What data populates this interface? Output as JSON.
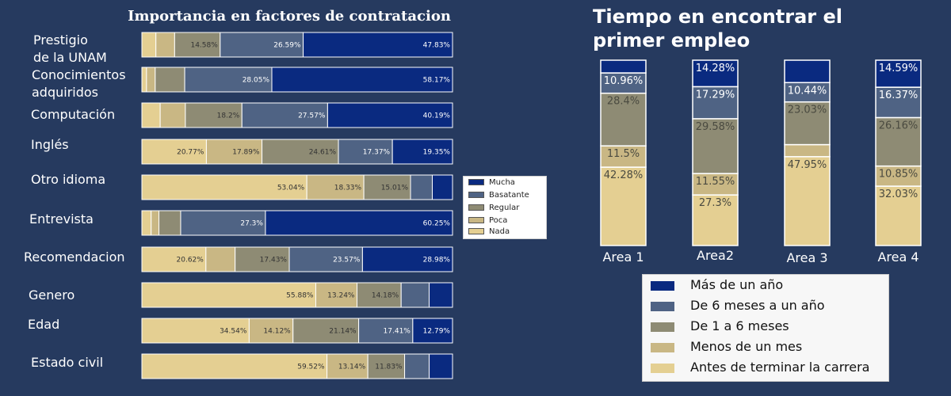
{
  "chart_data": [
    {
      "type": "bar",
      "orientation": "horizontal",
      "stacked": true,
      "title": "Importancia en factores de contratacion",
      "categories": [
        "Prestigio\nde la UNAM",
        "Conocimientos\nadquiridos",
        "Computación",
        "Inglés",
        "Otro idioma",
        "Entrevista",
        "Recomendacion",
        "Genero",
        "Edad",
        "Estado civil"
      ],
      "series": [
        {
          "name": "Nada",
          "values": [
            4.5,
            1.5,
            5.9,
            20.77,
            53.04,
            3.0,
            20.62,
            55.88,
            34.54,
            59.52
          ],
          "labels": [
            "",
            "",
            "",
            "20.77%",
            "53.04%",
            "",
            "20.62%",
            "55.88%",
            "34.54%",
            "59.52%"
          ]
        },
        {
          "name": "Poca",
          "values": [
            6.0,
            2.8,
            8.1,
            17.89,
            18.33,
            2.5,
            9.4,
            13.24,
            14.12,
            13.14
          ],
          "labels": [
            "",
            "",
            "",
            "17.89%",
            "18.33%",
            "",
            "",
            "13.24%",
            "14.12%",
            "13.14%"
          ]
        },
        {
          "name": "Regular",
          "values": [
            14.58,
            9.5,
            18.2,
            24.61,
            15.01,
            7.0,
            17.43,
            14.18,
            21.14,
            11.83
          ],
          "labels": [
            "14.58%",
            "",
            "18.2%",
            "24.61%",
            "15.01%",
            "",
            "17.43%",
            "14.18%",
            "21.14%",
            "11.83%"
          ]
        },
        {
          "name": "Basatante",
          "values": [
            26.59,
            28.05,
            27.57,
            17.37,
            7.0,
            27.3,
            23.57,
            9.0,
            17.41,
            7.9
          ],
          "labels": [
            "26.59%",
            "28.05%",
            "27.57%",
            "17.37%",
            "",
            "27.3%",
            "23.57%",
            "",
            "17.41%",
            ""
          ]
        },
        {
          "name": "Mucha",
          "values": [
            47.83,
            58.17,
            40.19,
            19.35,
            6.5,
            60.25,
            28.98,
            7.5,
            12.79,
            7.5
          ],
          "labels": [
            "47.83%",
            "58.17%",
            "40.19%",
            "19.35%",
            "",
            "60.25%",
            "28.98%",
            "",
            "12.79%",
            ""
          ]
        }
      ],
      "legend": {
        "position": "right",
        "entries": [
          "Mucha",
          "Basatante",
          "Regular",
          "Poca",
          "Nada"
        ]
      }
    },
    {
      "type": "bar",
      "stacked": true,
      "title": "Tiempo en encontrar el\nprimer empleo",
      "categories": [
        "Area 1",
        "Area2",
        "Area 3",
        "Area 4"
      ],
      "series": [
        {
          "name": "Antes de terminar la carrera",
          "values": [
            42.28,
            27.3,
            47.95,
            32.03
          ],
          "labels": [
            "42.28%",
            "27.3%",
            "47.95%",
            "32.03%"
          ]
        },
        {
          "name": "Menos de un mes",
          "values": [
            11.5,
            11.55,
            6.5,
            10.85
          ],
          "labels": [
            "11.5%",
            "11.55%",
            "",
            "10.85%"
          ]
        },
        {
          "name": "De 1 a 6 meses",
          "values": [
            28.4,
            29.58,
            23.03,
            26.16
          ],
          "labels": [
            "28.4%",
            "29.58%",
            "23.03%",
            "26.16%"
          ]
        },
        {
          "name": "De 6 meses a un año",
          "values": [
            10.96,
            17.29,
            10.44,
            16.37
          ],
          "labels": [
            "10.96%",
            "17.29%",
            "10.44%",
            "16.37%"
          ]
        },
        {
          "name": "Más de un año",
          "values": [
            6.86,
            14.28,
            12.08,
            14.59
          ],
          "labels": [
            "",
            "14.28%",
            "",
            "14.59%"
          ]
        }
      ],
      "legend": {
        "position": "bottom",
        "entries": [
          "Más de un año",
          "De 6 meses a un año",
          "De 1 a 6 meses",
          "Menos de un mes",
          "Antes de terminar la carrera"
        ]
      }
    }
  ],
  "colors": {
    "nada": "#e4cf92",
    "poca": "#c9b784",
    "regular": "#8e8b74",
    "basatante": "#4f6384",
    "mucha": "#0a2a80",
    "background": "#263a5f"
  }
}
